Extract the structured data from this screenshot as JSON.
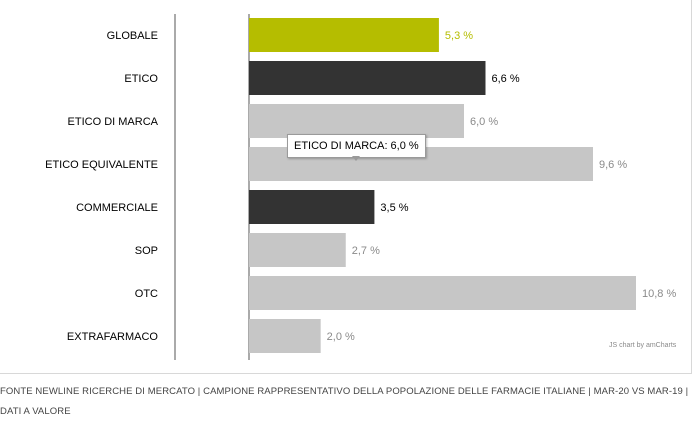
{
  "chart_data": {
    "type": "bar",
    "orientation": "horizontal",
    "categories": [
      "GLOBALE",
      "ETICO",
      "ETICO DI MARCA",
      "ETICO EQUIVALENTE",
      "COMMERCIALE",
      "SOP",
      "OTC",
      "EXTRAFARMACO"
    ],
    "values": [
      5.3,
      6.6,
      6.0,
      9.6,
      3.5,
      2.7,
      10.8,
      2.0
    ],
    "value_labels": [
      "5,3 %",
      "6,6 %",
      "6,0 %",
      "9,6 %",
      "3,5 %",
      "2,7 %",
      "10,8 %",
      "2,0 %"
    ],
    "bar_colors": [
      "#b5bd00",
      "#333333",
      "#c6c6c6",
      "#c6c6c6",
      "#333333",
      "#c6c6c6",
      "#c6c6c6",
      "#c6c6c6"
    ],
    "label_colors": [
      "#b5bd00",
      "#000000",
      "#8a8a8a",
      "#8a8a8a",
      "#000000",
      "#8a8a8a",
      "#8a8a8a",
      "#8a8a8a"
    ],
    "xlim": [
      0,
      10.8
    ],
    "grid": false,
    "title": "",
    "xlabel": "",
    "ylabel": ""
  },
  "tooltip": {
    "text": "ETICO DI MARCA: 6,0 %"
  },
  "credit": "JS chart by amCharts",
  "footer": "FONTE NEWLINE RICERCHE DI MERCATO | CAMPIONE RAPPRESENTATIVO DELLA POPOLAZIONE DELLE FARMACIE ITALIANE | MAR-20 VS MAR-19 | DATI A VALORE"
}
